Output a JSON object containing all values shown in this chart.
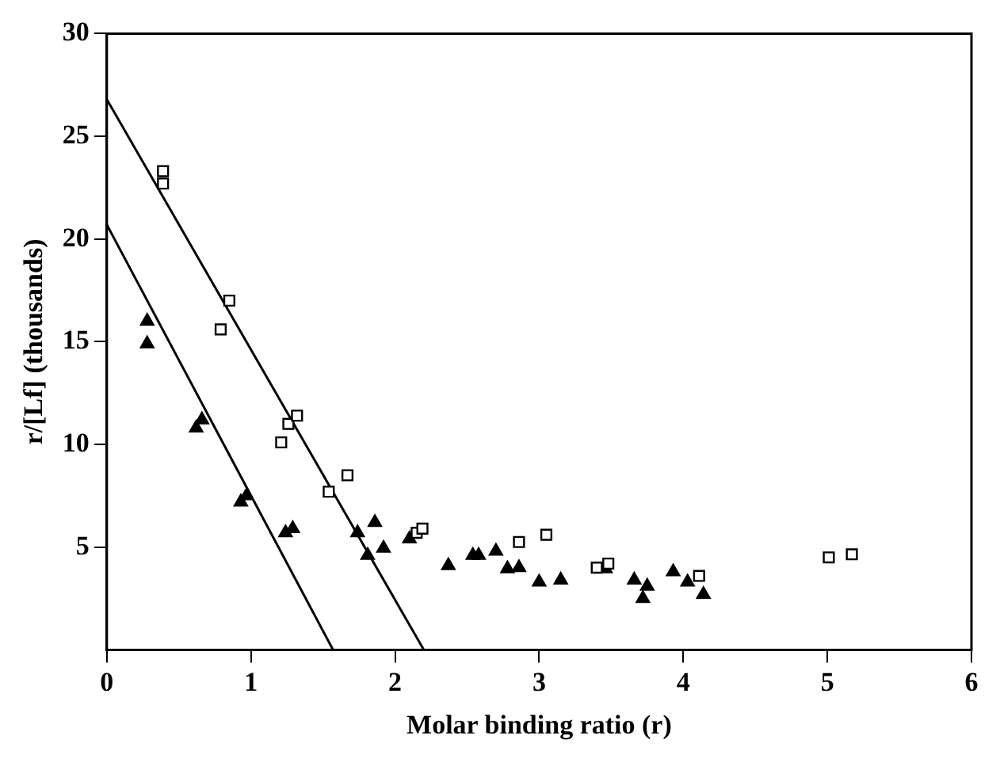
{
  "chart_data": {
    "type": "scatter",
    "xlabel": "Molar binding ratio (r)",
    "ylabel": "r/[Lf] (thousands)",
    "xlim": [
      0,
      6
    ],
    "ylim": [
      0,
      30
    ],
    "xticks": [
      0,
      1,
      2,
      3,
      4,
      5,
      6
    ],
    "yticks": [
      5,
      10,
      15,
      20,
      25,
      30
    ],
    "grid": false,
    "legend": false,
    "series": [
      {
        "marker": "square",
        "color": "#000000",
        "x": [
          0.39,
          0.39,
          0.85,
          0.79,
          1.21,
          1.26,
          1.32,
          1.54,
          1.67,
          2.15,
          2.19,
          2.86,
          3.05,
          3.4,
          3.48,
          4.11,
          5.01,
          5.17
        ],
        "values": [
          23.3,
          22.7,
          17.0,
          15.6,
          10.1,
          11.0,
          11.4,
          7.7,
          8.5,
          5.7,
          5.9,
          5.25,
          5.6,
          4.0,
          4.2,
          3.6,
          4.5,
          4.65
        ]
      },
      {
        "marker": "triangle",
        "color": "#000000",
        "x": [
          0.28,
          0.28,
          0.62,
          0.66,
          0.93,
          0.97,
          1.24,
          1.29,
          1.74,
          1.86,
          1.81,
          1.92,
          2.1,
          2.37,
          2.54,
          2.58,
          2.7,
          2.78,
          2.86,
          3.0,
          3.15,
          3.46,
          3.66,
          3.75,
          3.72,
          3.93,
          4.03,
          4.14
        ],
        "values": [
          16.0,
          14.9,
          10.8,
          11.2,
          7.2,
          7.5,
          5.7,
          5.9,
          5.7,
          6.2,
          4.6,
          4.95,
          5.4,
          4.1,
          4.6,
          4.6,
          4.8,
          3.95,
          4.0,
          3.3,
          3.4,
          3.95,
          3.4,
          3.1,
          2.5,
          3.8,
          3.3,
          2.7
        ]
      },
      {
        "type": "line",
        "marker": "none",
        "color": "#000000",
        "x": [
          0,
          2.2
        ],
        "values": [
          26.8,
          0
        ]
      },
      {
        "type": "line",
        "marker": "none",
        "color": "#000000",
        "x": [
          0,
          1.57
        ],
        "values": [
          20.7,
          0
        ]
      }
    ]
  }
}
